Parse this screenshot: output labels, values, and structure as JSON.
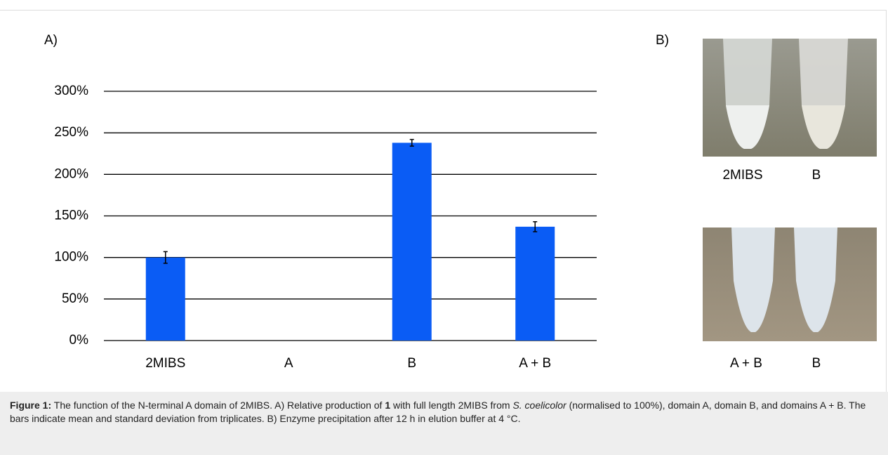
{
  "chart_data": {
    "type": "bar",
    "panel_label": "A)",
    "categories": [
      "2MIBS",
      "A",
      "B",
      "A + B"
    ],
    "values": [
      100,
      0,
      238,
      137
    ],
    "errors": [
      7,
      null,
      4,
      6
    ],
    "color": "#0a5cf5",
    "ylim": [
      0,
      300
    ],
    "yticks": [
      {
        "value": 0,
        "label": "0%"
      },
      {
        "value": 50,
        "label": "50%"
      },
      {
        "value": 100,
        "label": "100%"
      },
      {
        "value": 150,
        "label": "150%"
      },
      {
        "value": 200,
        "label": "200%"
      },
      {
        "value": 250,
        "label": "250%"
      },
      {
        "value": 300,
        "label": "300%"
      }
    ],
    "grid": true
  },
  "photos": {
    "panel_label": "B)",
    "top": {
      "labels": [
        "2MIBS",
        "B"
      ]
    },
    "bottom": {
      "labels": [
        "A + B",
        "B"
      ]
    }
  },
  "caption": {
    "label": "Figure 1:",
    "parts": [
      " The function of the N-terminal A domain of 2MIBS. A) Relative production of ",
      "1",
      " with full length 2MIBS from ",
      "S. coelicolor",
      " (normalised to 100%), domain A, domain B, and domains A + B. The bars indicate mean and standard deviation from triplicates. B) Enzyme precipitation after 12 h in elution buffer at 4 °C."
    ]
  }
}
